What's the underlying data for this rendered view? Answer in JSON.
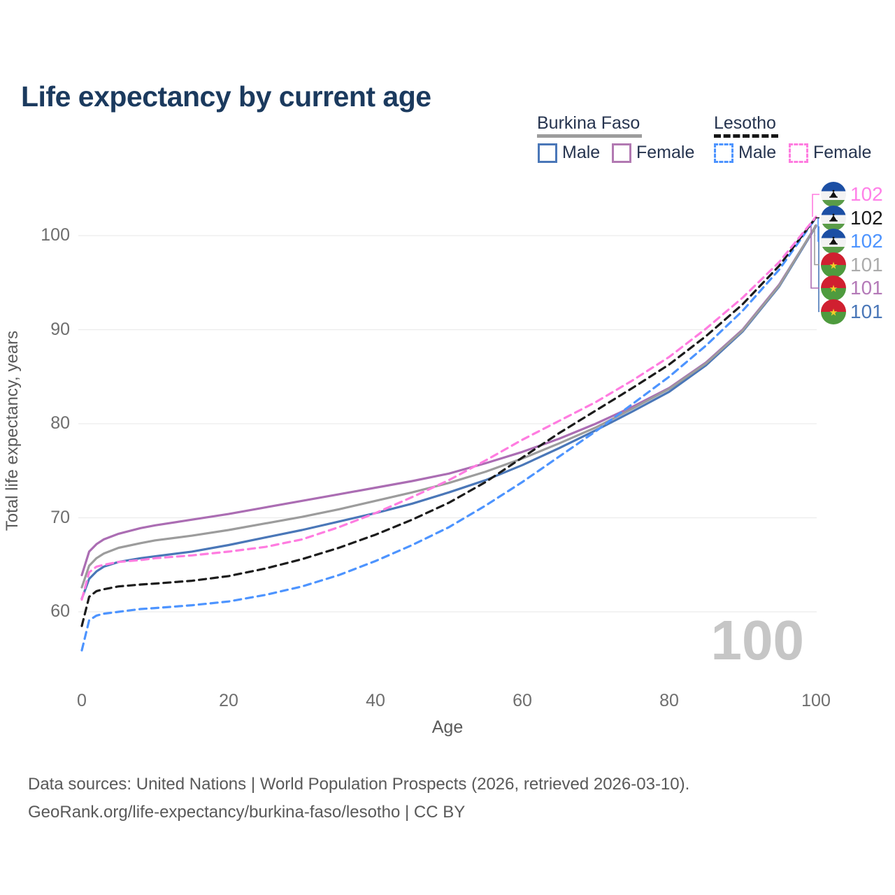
{
  "page": {
    "title": "Life expectancy by current age",
    "footer_line1": "Data sources: United Nations | World Population Prospects (2026, retrieved 2026-03-10).",
    "footer_line2": "GeoRank.org/life-expectancy/burkina-faso/lesotho | CC BY"
  },
  "legend": {
    "groups": [
      {
        "country": "Burkina Faso",
        "underline_style": "solid",
        "underline_color": "#9c9c9c",
        "items": [
          {
            "label": "Male",
            "color": "#4a77b8",
            "style": "solid"
          },
          {
            "label": "Female",
            "color": "#b279b2",
            "style": "solid"
          }
        ]
      },
      {
        "country": "Lesotho",
        "underline_style": "dashed",
        "underline_color": "#161616",
        "items": [
          {
            "label": "Male",
            "color": "#4d94ff",
            "style": "dashed"
          },
          {
            "label": "Female",
            "color": "#ff7ce0",
            "style": "dashed"
          }
        ]
      }
    ]
  },
  "chart_data": {
    "type": "line",
    "title": "Life expectancy by current age",
    "xlabel": "Age",
    "ylabel": "Total life expectancy, years",
    "x_ticks": [
      0,
      20,
      40,
      60,
      80,
      100
    ],
    "y_ticks": [
      60,
      70,
      80,
      90,
      100
    ],
    "xlim": [
      0,
      100
    ],
    "grid": "horizontal",
    "legend_position": "top-right",
    "age_counter": "100",
    "series": [
      {
        "name": "Burkina Faso — Male",
        "country": "Burkina Faso",
        "sex": "Male",
        "color": "#4a77b8",
        "dash": null,
        "flag": "burkina-faso",
        "end_label": "101",
        "end_label_color": "#4a77b8",
        "label_row": 5,
        "points": [
          [
            0,
            61.4
          ],
          [
            1,
            63.5
          ],
          [
            2,
            64.3
          ],
          [
            3,
            64.8
          ],
          [
            5,
            65.3
          ],
          [
            8,
            65.7
          ],
          [
            10,
            65.9
          ],
          [
            15,
            66.4
          ],
          [
            20,
            67.1
          ],
          [
            25,
            67.9
          ],
          [
            30,
            68.7
          ],
          [
            35,
            69.6
          ],
          [
            40,
            70.5
          ],
          [
            45,
            71.5
          ],
          [
            50,
            72.7
          ],
          [
            55,
            74.0
          ],
          [
            60,
            75.6
          ],
          [
            65,
            77.4
          ],
          [
            70,
            79.3
          ],
          [
            75,
            81.3
          ],
          [
            80,
            83.4
          ],
          [
            85,
            86.2
          ],
          [
            90,
            89.8
          ],
          [
            95,
            94.6
          ],
          [
            100,
            101.0
          ]
        ]
      },
      {
        "name": "Burkina Faso — Female",
        "country": "Burkina Faso",
        "sex": "Female",
        "color": "#ab6db3",
        "dash": null,
        "flag": "burkina-faso",
        "end_label": "101",
        "end_label_color": "#b47ab8",
        "label_row": 4,
        "points": [
          [
            0,
            63.9
          ],
          [
            1,
            66.4
          ],
          [
            2,
            67.2
          ],
          [
            3,
            67.7
          ],
          [
            5,
            68.3
          ],
          [
            8,
            68.9
          ],
          [
            10,
            69.2
          ],
          [
            15,
            69.8
          ],
          [
            20,
            70.4
          ],
          [
            25,
            71.1
          ],
          [
            30,
            71.8
          ],
          [
            35,
            72.5
          ],
          [
            40,
            73.2
          ],
          [
            45,
            73.9
          ],
          [
            50,
            74.7
          ],
          [
            55,
            75.8
          ],
          [
            60,
            77.0
          ],
          [
            65,
            78.4
          ],
          [
            70,
            80.0
          ],
          [
            75,
            81.8
          ],
          [
            80,
            83.8
          ],
          [
            85,
            86.5
          ],
          [
            90,
            90.0
          ],
          [
            95,
            94.8
          ],
          [
            100,
            101.05
          ]
        ]
      },
      {
        "name": "Burkina Faso — Total",
        "country": "Burkina Faso",
        "sex": "Total",
        "color": "#9c9c9c",
        "dash": null,
        "flag": "burkina-faso",
        "end_label": "101",
        "end_label_color": "#ababab",
        "label_row": 3,
        "points": [
          [
            0,
            62.6
          ],
          [
            1,
            64.9
          ],
          [
            2,
            65.7
          ],
          [
            3,
            66.2
          ],
          [
            5,
            66.8
          ],
          [
            8,
            67.3
          ],
          [
            10,
            67.6
          ],
          [
            15,
            68.1
          ],
          [
            20,
            68.7
          ],
          [
            25,
            69.4
          ],
          [
            30,
            70.1
          ],
          [
            35,
            70.9
          ],
          [
            40,
            71.8
          ],
          [
            45,
            72.7
          ],
          [
            50,
            73.7
          ],
          [
            55,
            74.9
          ],
          [
            60,
            76.3
          ],
          [
            65,
            77.9
          ],
          [
            70,
            79.6
          ],
          [
            75,
            81.6
          ],
          [
            80,
            83.7
          ],
          [
            85,
            86.4
          ],
          [
            90,
            89.9
          ],
          [
            95,
            94.7
          ],
          [
            100,
            101.1
          ]
        ]
      },
      {
        "name": "Lesotho — Male",
        "country": "Lesotho",
        "sex": "Male",
        "color": "#4d94ff",
        "dash": "10 7",
        "flag": "lesotho",
        "end_label": "102",
        "end_label_color": "#4d94ff",
        "label_row": 2,
        "points": [
          [
            0,
            55.9
          ],
          [
            1,
            59.1
          ],
          [
            2,
            59.6
          ],
          [
            3,
            59.8
          ],
          [
            5,
            60.0
          ],
          [
            8,
            60.3
          ],
          [
            10,
            60.4
          ],
          [
            15,
            60.7
          ],
          [
            20,
            61.1
          ],
          [
            25,
            61.8
          ],
          [
            30,
            62.7
          ],
          [
            35,
            63.9
          ],
          [
            40,
            65.4
          ],
          [
            45,
            67.1
          ],
          [
            50,
            69.0
          ],
          [
            55,
            71.3
          ],
          [
            60,
            73.8
          ],
          [
            65,
            76.5
          ],
          [
            70,
            79.2
          ],
          [
            75,
            82.1
          ],
          [
            80,
            85.0
          ],
          [
            85,
            88.3
          ],
          [
            90,
            92.0
          ],
          [
            95,
            96.4
          ],
          [
            100,
            101.9
          ]
        ]
      },
      {
        "name": "Lesotho — Total",
        "country": "Lesotho",
        "sex": "Total",
        "color": "#1c1c1c",
        "dash": "10 7",
        "flag": "lesotho",
        "end_label": "102",
        "end_label_color": "#1a1a1a",
        "label_row": 1,
        "points": [
          [
            0,
            58.5
          ],
          [
            1,
            61.6
          ],
          [
            2,
            62.2
          ],
          [
            3,
            62.4
          ],
          [
            5,
            62.7
          ],
          [
            8,
            62.9
          ],
          [
            10,
            63.0
          ],
          [
            15,
            63.3
          ],
          [
            20,
            63.8
          ],
          [
            25,
            64.6
          ],
          [
            30,
            65.6
          ],
          [
            35,
            66.8
          ],
          [
            40,
            68.2
          ],
          [
            45,
            69.8
          ],
          [
            50,
            71.6
          ],
          [
            55,
            73.8
          ],
          [
            60,
            76.4
          ],
          [
            65,
            79.0
          ],
          [
            70,
            81.4
          ],
          [
            75,
            83.8
          ],
          [
            80,
            86.3
          ],
          [
            85,
            89.3
          ],
          [
            90,
            92.7
          ],
          [
            95,
            96.8
          ],
          [
            100,
            101.95
          ]
        ]
      },
      {
        "name": "Lesotho — Female",
        "country": "Lesotho",
        "sex": "Female",
        "color": "#ff7ce0",
        "dash": "10 7",
        "flag": "lesotho",
        "end_label": "102",
        "end_label_color": "#ff80e8",
        "label_row": 0,
        "points": [
          [
            0,
            61.3
          ],
          [
            1,
            64.2
          ],
          [
            2,
            64.8
          ],
          [
            3,
            65.0
          ],
          [
            5,
            65.3
          ],
          [
            8,
            65.5
          ],
          [
            10,
            65.7
          ],
          [
            15,
            66.0
          ],
          [
            20,
            66.4
          ],
          [
            25,
            66.9
          ],
          [
            30,
            67.7
          ],
          [
            35,
            69.0
          ],
          [
            40,
            70.5
          ],
          [
            45,
            72.2
          ],
          [
            50,
            74.0
          ],
          [
            55,
            76.1
          ],
          [
            60,
            78.3
          ],
          [
            65,
            80.3
          ],
          [
            70,
            82.3
          ],
          [
            75,
            84.6
          ],
          [
            80,
            87.1
          ],
          [
            85,
            90.1
          ],
          [
            90,
            93.4
          ],
          [
            95,
            97.2
          ],
          [
            100,
            102.0
          ]
        ]
      }
    ]
  }
}
